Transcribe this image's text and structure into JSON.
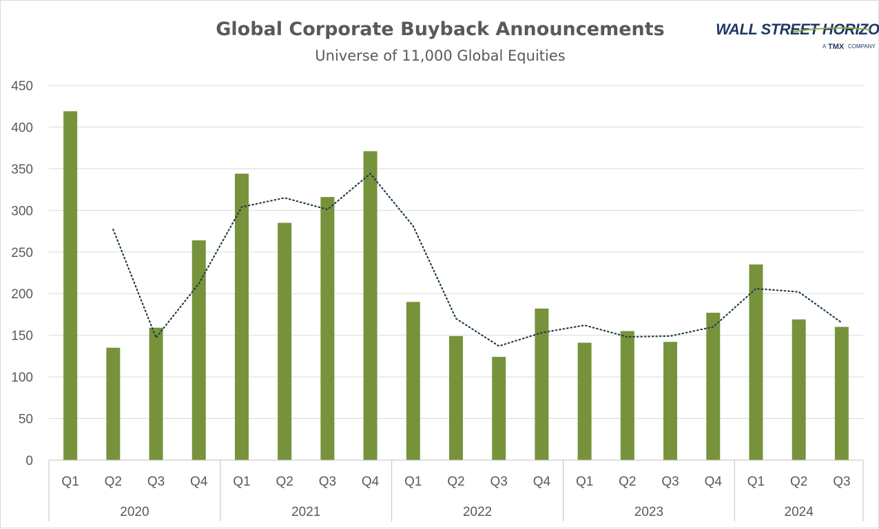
{
  "chart_data": {
    "type": "bar",
    "title": "Global Corporate Buyback Announcements",
    "subtitle": "Universe of 11,000 Global Equities",
    "categories": [
      {
        "quarter": "Q1",
        "year": "2020"
      },
      {
        "quarter": "Q2",
        "year": "2020"
      },
      {
        "quarter": "Q3",
        "year": "2020"
      },
      {
        "quarter": "Q4",
        "year": "2020"
      },
      {
        "quarter": "Q1",
        "year": "2021"
      },
      {
        "quarter": "Q2",
        "year": "2021"
      },
      {
        "quarter": "Q3",
        "year": "2021"
      },
      {
        "quarter": "Q4",
        "year": "2021"
      },
      {
        "quarter": "Q1",
        "year": "2022"
      },
      {
        "quarter": "Q2",
        "year": "2022"
      },
      {
        "quarter": "Q3",
        "year": "2022"
      },
      {
        "quarter": "Q4",
        "year": "2022"
      },
      {
        "quarter": "Q1",
        "year": "2023"
      },
      {
        "quarter": "Q2",
        "year": "2023"
      },
      {
        "quarter": "Q3",
        "year": "2023"
      },
      {
        "quarter": "Q4",
        "year": "2023"
      },
      {
        "quarter": "Q1",
        "year": "2024"
      },
      {
        "quarter": "Q2",
        "year": "2024"
      },
      {
        "quarter": "Q3",
        "year": "2024"
      }
    ],
    "years": [
      "2020",
      "2021",
      "2022",
      "2023",
      "2024"
    ],
    "series": [
      {
        "type": "bar",
        "color": "#76933c",
        "values": [
          419,
          135,
          159,
          264,
          344,
          285,
          316,
          371,
          190,
          149,
          124,
          182,
          141,
          155,
          142,
          177,
          235,
          169,
          160
        ]
      },
      {
        "type": "line",
        "style": "dotted",
        "color": "#1f3a4d",
        "values": [
          null,
          277,
          147,
          212,
          304,
          315,
          301,
          344,
          281,
          170,
          137,
          153,
          162,
          148,
          149,
          160,
          206,
          202,
          165
        ]
      }
    ],
    "ylim": [
      0,
      450
    ],
    "yticks": [
      0,
      50,
      100,
      150,
      200,
      250,
      300,
      350,
      400,
      450
    ],
    "grid": true,
    "xlabel": "",
    "ylabel": ""
  },
  "logo": {
    "name": "WALL STREET HORIZON",
    "tagline_prefix": "A",
    "tagline_brand": "TMX",
    "tagline_suffix": "COMPANY"
  }
}
